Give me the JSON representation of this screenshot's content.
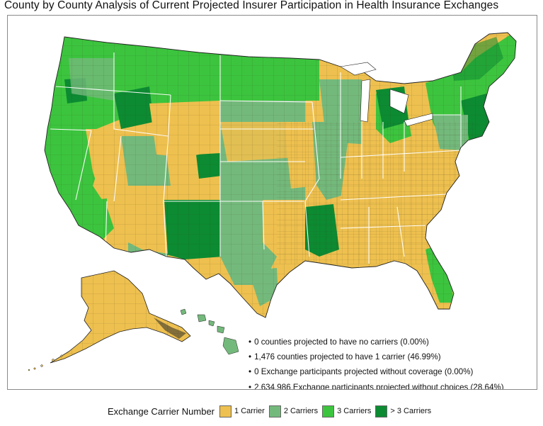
{
  "title": "County by County Analysis of Current Projected Insurer Participation in Health Insurance Exchanges",
  "statistics": [
    "0 counties projected to have no carriers (0.00%)",
    "1,476 counties projected to have 1 carrier (46.99%)",
    "0 Exchange participants projected without coverage (0.00%)",
    "2,634,986 Exchange participants projected without choices (28.64%)"
  ],
  "legend": {
    "title": "Exchange Carrier Number",
    "items": [
      {
        "label": "1 Carrier",
        "color": "#EEC04F"
      },
      {
        "label": "2 Carriers",
        "color": "#74B97C"
      },
      {
        "label": "3 Carriers",
        "color": "#3CC43E"
      },
      {
        "label": "> 3 Carriers",
        "color": "#0C8B32"
      }
    ]
  }
}
